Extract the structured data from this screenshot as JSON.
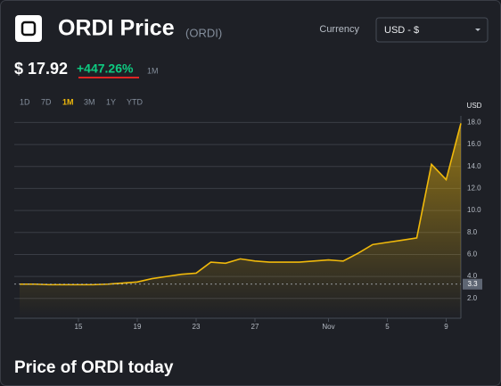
{
  "header": {
    "title": "ORDI Price",
    "symbol": "(ORDI)",
    "currency_label": "Currency",
    "currency_value": "USD - $"
  },
  "price": {
    "value": "$ 17.92",
    "change": "+447.26%",
    "period": "1M"
  },
  "ranges": [
    "1D",
    "7D",
    "1M",
    "3M",
    "1Y",
    "YTD"
  ],
  "active_range": "1M",
  "section_title": "Price of ORDI today",
  "chart_data": {
    "type": "area",
    "y_axis_label": "USD",
    "color": "#f0b90b",
    "categories": [
      null,
      null,
      null,
      null,
      "15",
      null,
      null,
      null,
      "19",
      null,
      null,
      null,
      "23",
      null,
      null,
      null,
      "27",
      null,
      null,
      null,
      null,
      "Nov",
      null,
      null,
      null,
      "5",
      null,
      null,
      null,
      "9",
      null
    ],
    "values": [
      3.3,
      3.3,
      3.25,
      3.25,
      3.25,
      3.25,
      3.3,
      3.4,
      3.5,
      3.8,
      4.0,
      4.2,
      4.3,
      5.3,
      5.2,
      5.6,
      5.4,
      5.3,
      5.3,
      5.3,
      5.4,
      5.5,
      5.4,
      6.1,
      6.9,
      7.1,
      7.3,
      7.5,
      14.2,
      12.8,
      17.92
    ],
    "ylim": [
      0.2,
      18.6
    ],
    "yticks": [
      {
        "value": 2,
        "label": "2.0"
      },
      {
        "value": 4,
        "label": "4.0"
      },
      {
        "value": 6,
        "label": "6.0"
      },
      {
        "value": 8,
        "label": "8.0"
      },
      {
        "value": 10,
        "label": "10.0"
      },
      {
        "value": 12,
        "label": "12.0"
      },
      {
        "value": 14,
        "label": "14.0"
      },
      {
        "value": 16,
        "label": "16.0"
      },
      {
        "value": 18,
        "label": "18.0"
      }
    ],
    "ref_line": {
      "value": 3.3,
      "label": "3.3"
    },
    "grid": true
  }
}
